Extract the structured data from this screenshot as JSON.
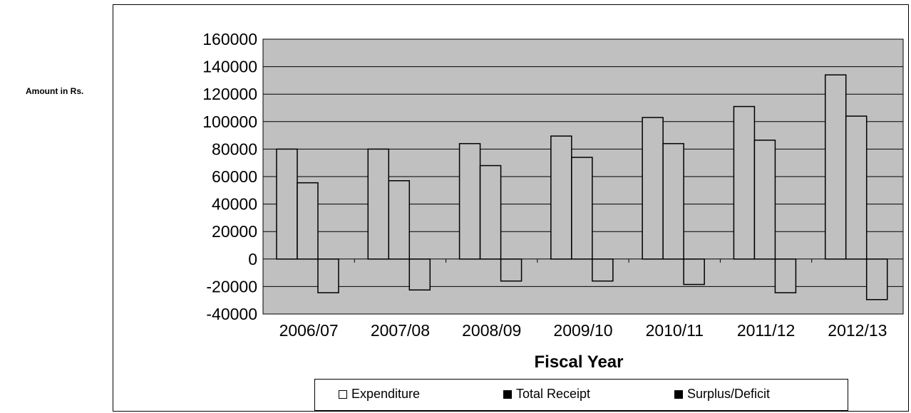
{
  "chart_data": {
    "type": "bar",
    "title": "",
    "xlabel": "Fiscal Year",
    "ylabel": "Amount in Rs.",
    "categories": [
      "2006/07",
      "2007/08",
      "2008/09",
      "2009/10",
      "2010/11",
      "2011/12",
      "2012/13"
    ],
    "series": [
      {
        "name": "Expenditure",
        "values": [
          80000,
          80000,
          84000,
          89500,
          103000,
          111000,
          134000
        ]
      },
      {
        "name": "Total Receipt",
        "values": [
          55500,
          57000,
          68000,
          74000,
          84000,
          86500,
          104000
        ]
      },
      {
        "name": "Surplus/Deficit",
        "values": [
          -24500,
          -22500,
          -16000,
          -16000,
          -18500,
          -24500,
          -29500
        ]
      }
    ],
    "ylim": [
      -40000,
      160000
    ],
    "yticks": [
      160000,
      140000,
      120000,
      100000,
      80000,
      60000,
      40000,
      20000,
      0,
      -20000,
      -40000
    ],
    "grid": true,
    "legend_position": "bottom",
    "colors": {
      "plot_background": "#c0c0c0",
      "bar_fill": "#c0c0c0",
      "bar_stroke": "#000000",
      "gridline": "#000000",
      "legend_expenditure_swatch": "#ffffff",
      "legend_total_receipt_swatch": "#000000",
      "legend_surplus_swatch": "#000000"
    }
  }
}
